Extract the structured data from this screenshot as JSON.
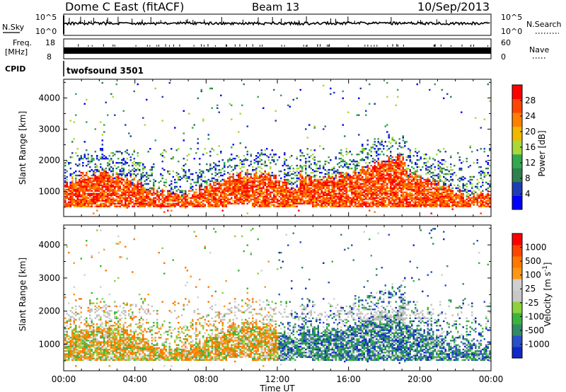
{
  "header": {
    "station": "Dome C East (fitACF)",
    "beam": "Beam 13",
    "date": "10/Sep/2013"
  },
  "strip_labels": {
    "nsky": "N.Sky",
    "nsearch": "N.Search",
    "freq_line1": "Freq.",
    "freq_line2": "[MHz]",
    "nave": "Nave",
    "cpid": "CPID",
    "cpid_value": "twofsound 3501",
    "nsky_tick_top": "10^5",
    "nsky_tick_bottom": "10^0",
    "freq_tick_top": "18",
    "freq_tick_bottom": "8",
    "nave_tick_top": "60",
    "nave_tick_bottom": "0"
  },
  "colors": {
    "power": [
      "#0000ff",
      "#1e3cb4",
      "#2f7f4f",
      "#33a84f",
      "#a8d83a",
      "#f0b800",
      "#ff7f00",
      "#ff4500",
      "#ff0000"
    ],
    "velocity": [
      "#0f28c8",
      "#2850c8",
      "#2f8c64",
      "#3cb43c",
      "#8cd23c",
      "#c8c8c8",
      "#d0d0d0",
      "#ff9614",
      "#ff7800",
      "#ff4600",
      "#ff0000"
    ],
    "ground": "#c0c0c0"
  },
  "chart_data": [
    {
      "type": "heatmap",
      "ylabel": "Slant Range [km]",
      "xlabel": "",
      "ylim": [
        200,
        4600
      ],
      "yticks": [
        "1000",
        "2000",
        "3000",
        "4000"
      ],
      "xticks": [
        "00:00",
        "04:00",
        "08:00",
        "12:00",
        "16:00",
        "20:00",
        "00:00"
      ],
      "colorbar": {
        "label": "Power [dB]",
        "ticks": [
          "4",
          "8",
          "12",
          "16",
          "20",
          "24",
          "28"
        ]
      }
    },
    {
      "type": "heatmap",
      "ylabel": "Slant Range [km]",
      "xlabel": "Time UT",
      "ylim": [
        200,
        4600
      ],
      "yticks": [
        "1000",
        "2000",
        "3000",
        "4000"
      ],
      "xticks": [
        "00:00",
        "04:00",
        "08:00",
        "12:00",
        "16:00",
        "20:00",
        "00:00"
      ],
      "colorbar": {
        "label": "Velocity [m s-1]",
        "label_main": "Velocity [m s",
        "label_sup": "-1",
        "label_end": "]",
        "ticks": [
          "1000",
          "500",
          "100",
          "25",
          "-25",
          "-100",
          "-500",
          "-1000"
        ]
      }
    }
  ]
}
